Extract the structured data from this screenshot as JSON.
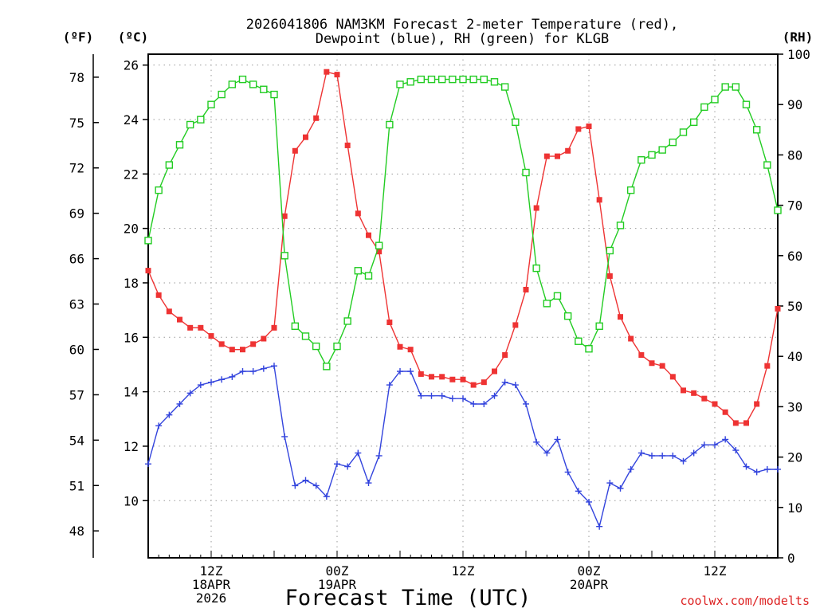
{
  "chart_data": {
    "type": "line",
    "title_line1": "2026041806 NAM3KM Forecast 2-meter Temperature (red),",
    "title_line2": "Dewpoint (blue), RH (green) for KLGB",
    "xlabel": "Forecast Time (UTC)",
    "watermark": "coolwx.com/modelts",
    "unit_f": "(ºF)",
    "unit_c": "(ºC)",
    "unit_rh": "(RH)",
    "x_hours_range": [
      0,
      60
    ],
    "y_celsius_range": [
      7.9,
      26.4
    ],
    "y_rh_range": [
      0,
      100
    ],
    "grid": true,
    "x_ticks": [
      {
        "hour": 6,
        "lines": [
          "12Z",
          "18APR",
          "2026"
        ]
      },
      {
        "hour": 18,
        "lines": [
          "00Z",
          "19APR"
        ]
      },
      {
        "hour": 30,
        "lines": [
          "12Z"
        ]
      },
      {
        "hour": 42,
        "lines": [
          "00Z",
          "20APR"
        ]
      },
      {
        "hour": 54,
        "lines": [
          "12Z"
        ]
      }
    ],
    "y_ticks_c": [
      10,
      12,
      14,
      16,
      18,
      20,
      22,
      24,
      26
    ],
    "y_ticks_f": [
      48,
      51,
      54,
      57,
      60,
      63,
      66,
      69,
      72,
      75,
      78
    ],
    "y_ticks_rh": [
      0,
      10,
      20,
      30,
      40,
      50,
      60,
      70,
      80,
      90,
      100
    ],
    "series": [
      {
        "name": "Temperature",
        "axis": "C",
        "color": "#ee3333",
        "marker": "filled-square",
        "values": [
          18.45,
          17.55,
          16.95,
          16.65,
          16.35,
          16.35,
          16.05,
          15.75,
          15.55,
          15.55,
          15.75,
          15.95,
          16.35,
          20.45,
          22.85,
          23.35,
          24.05,
          25.75,
          25.65,
          23.05,
          20.55,
          19.75,
          19.15,
          16.55,
          15.65,
          15.55,
          14.65,
          14.55,
          14.55,
          14.45,
          14.45,
          14.25,
          14.35,
          14.75,
          15.35,
          16.45,
          17.75,
          20.75,
          22.65,
          22.65,
          22.85,
          23.65,
          23.75,
          21.05,
          18.25,
          16.75,
          15.95,
          15.35,
          15.05,
          14.95,
          14.55,
          14.05,
          13.95,
          13.75,
          13.55,
          13.25,
          12.85,
          12.85,
          13.55,
          14.95,
          17.05
        ]
      },
      {
        "name": "Dewpoint",
        "axis": "C",
        "color": "#3344dd",
        "marker": "plus",
        "values": [
          11.35,
          12.75,
          13.15,
          13.55,
          13.95,
          14.25,
          14.35,
          14.45,
          14.55,
          14.75,
          14.75,
          14.85,
          14.95,
          12.35,
          10.55,
          10.75,
          10.55,
          10.15,
          11.35,
          11.25,
          11.75,
          10.65,
          11.65,
          14.25,
          14.75,
          14.75,
          13.85,
          13.85,
          13.85,
          13.75,
          13.75,
          13.55,
          13.55,
          13.85,
          14.35,
          14.25,
          13.55,
          12.15,
          11.75,
          12.25,
          11.05,
          10.35,
          9.95,
          9.05,
          10.65,
          10.45,
          11.15,
          11.75,
          11.65,
          11.65,
          11.65,
          11.45,
          11.75,
          12.05,
          12.05,
          12.25,
          11.85,
          11.25,
          11.05,
          11.15,
          11.15
        ]
      },
      {
        "name": "RH",
        "axis": "RH",
        "color": "#22cc22",
        "marker": "open-square",
        "values": [
          63,
          73,
          78,
          82,
          86,
          87,
          90,
          92,
          94,
          95,
          94,
          93,
          92,
          60,
          46,
          44,
          42,
          38,
          42,
          47,
          57,
          56,
          62,
          86,
          94,
          94.5,
          95,
          95,
          95,
          95,
          95,
          95,
          95,
          94.5,
          93.5,
          86.5,
          76.5,
          57.5,
          50.5,
          52,
          48,
          43,
          41.5,
          46,
          61,
          66,
          73,
          79,
          80,
          81,
          82.5,
          84.5,
          86.5,
          89.5,
          91,
          93.5,
          93.5,
          90,
          85,
          78,
          69
        ]
      }
    ]
  }
}
